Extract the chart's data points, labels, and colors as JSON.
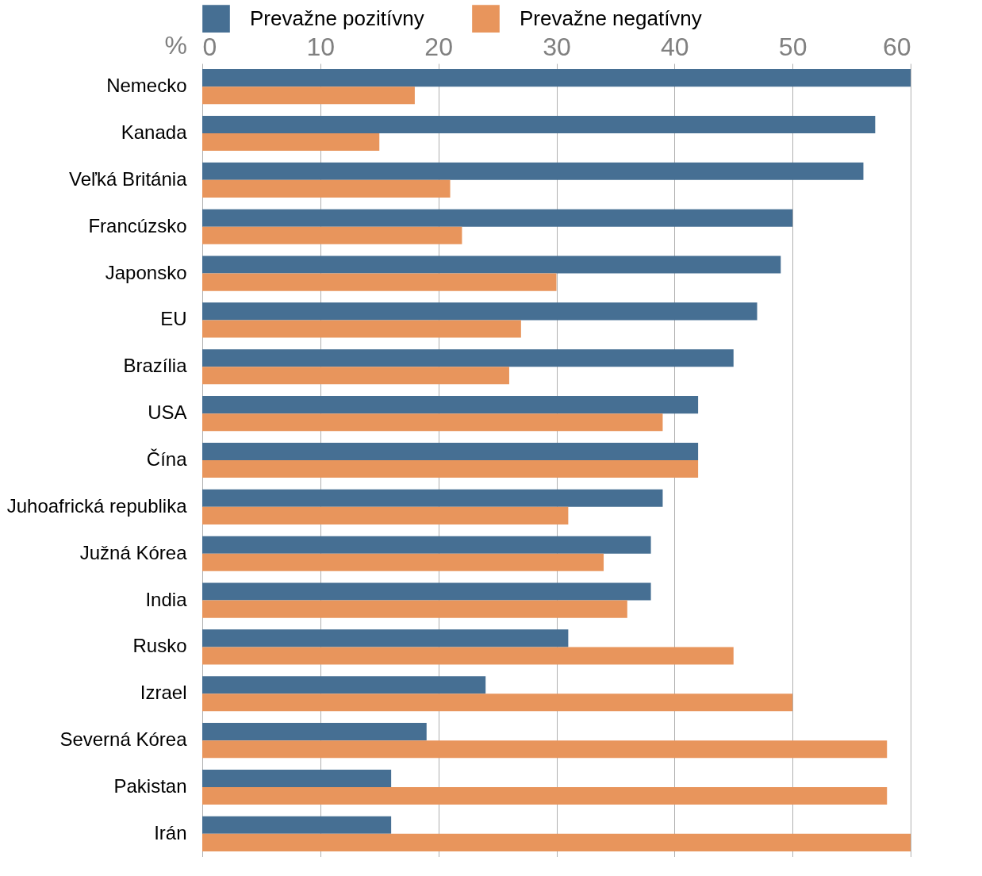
{
  "chart_data": {
    "type": "bar",
    "orientation": "horizontal",
    "xlabel": "%",
    "categories": [
      "Nemecko",
      "Kanada",
      "Veľká Británia",
      "Francúzsko",
      "Japonsko",
      "EU",
      "Brazília",
      "USA",
      "Čína",
      "Juhoafrická republika",
      "Južná Kórea",
      "India",
      "Rusko",
      "Izrael",
      "Severná Kórea",
      "Pakistan",
      "Irán"
    ],
    "series": [
      {
        "name": "Prevažne pozitívny",
        "color": "#466f93",
        "values": [
          60,
          57,
          56,
          50,
          49,
          47,
          45,
          42,
          42,
          39,
          38,
          38,
          31,
          24,
          19,
          16,
          16
        ]
      },
      {
        "name": "Prevažne negatívny",
        "color": "#e8955c",
        "values": [
          18,
          15,
          21,
          22,
          30,
          27,
          26,
          39,
          42,
          31,
          34,
          36,
          45,
          50,
          58,
          58,
          60
        ]
      }
    ],
    "xlim": [
      0,
      60
    ],
    "xticks": [
      0,
      10,
      20,
      30,
      40,
      50,
      60
    ],
    "grid": "x",
    "legend": "top"
  }
}
